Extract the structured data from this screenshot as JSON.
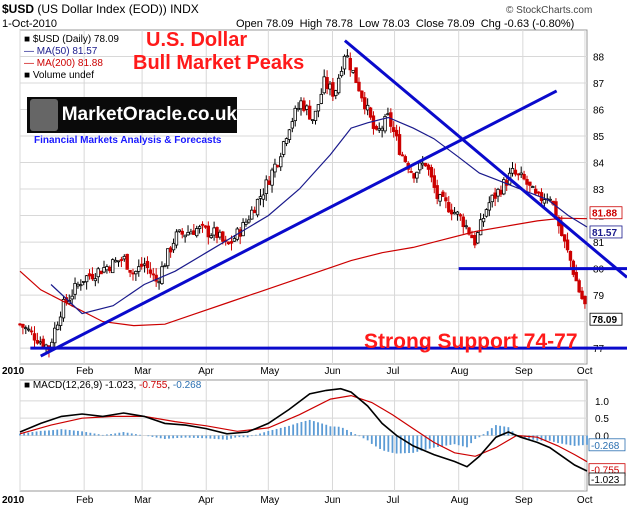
{
  "header": {
    "symbol": "$USD",
    "description": "(US Dollar Index (EOD))",
    "exchange": "INDX",
    "date": "1-Oct-2010",
    "open_label": "Open",
    "open": "78.09",
    "high_label": "High",
    "high": "78.78",
    "low_label": "Low",
    "low": "78.03",
    "close_label": "Close",
    "close": "78.09",
    "chg_label": "Chg",
    "chg": "-0.63 (-0.80%)",
    "copyright": "© StockCharts.com"
  },
  "legend": {
    "price": "■ $USD (Daily) 78.09",
    "ma50": "— MA(50) 81.57",
    "ma200": "— MA(200) 81.88",
    "volume": "■ Volume undef"
  },
  "annotations": {
    "title_line1": "U.S. Dollar",
    "title_line2": "Bull Market Peaks",
    "support": "Strong Support 74-77"
  },
  "logo": {
    "name": "MarketOracle.co.uk",
    "tagline": "Financial Markets Analysis & Forecasts"
  },
  "macd_legend": {
    "label": "MACD(12,26,9)",
    "macd": "-1.023",
    "signal": "-0.755",
    "hist": "-0.268"
  },
  "colors": {
    "up": "#000000",
    "down": "#cc0000",
    "ma50": "#1a1a8c",
    "ma200": "#cc0000",
    "trend": "#0a0acc",
    "annotation": "#ff1a1a",
    "hist": "#5b9bd5"
  },
  "chart_data": [
    {
      "type": "candlestick",
      "title": "$USD (US Dollar Index (EOD)) INDX",
      "ylim": [
        76.4,
        89.0
      ],
      "y_ticks": [
        77,
        78,
        79,
        80,
        81,
        82,
        83,
        84,
        85,
        86,
        87,
        88
      ],
      "x_ticks": [
        "2010",
        "Feb",
        "Mar",
        "Apr",
        "May",
        "Jun",
        "Jul",
        "Aug",
        "Sep",
        "Oct"
      ],
      "x_tick_days": [
        0,
        31,
        59,
        90,
        120,
        151,
        181,
        212,
        243,
        273
      ],
      "x_domain": [
        0,
        274
      ],
      "price_keypoints": [
        [
          0,
          77.9
        ],
        [
          8,
          77.4
        ],
        [
          14,
          77.0
        ],
        [
          20,
          78.5
        ],
        [
          30,
          79.6
        ],
        [
          40,
          80.0
        ],
        [
          50,
          80.4
        ],
        [
          55,
          79.8
        ],
        [
          60,
          80.2
        ],
        [
          66,
          79.5
        ],
        [
          75,
          81.2
        ],
        [
          85,
          81.5
        ],
        [
          95,
          81.3
        ],
        [
          100,
          80.8
        ],
        [
          108,
          81.6
        ],
        [
          118,
          83.0
        ],
        [
          125,
          84.2
        ],
        [
          130,
          85.4
        ],
        [
          136,
          86.3
        ],
        [
          142,
          85.6
        ],
        [
          147,
          87.0
        ],
        [
          152,
          86.6
        ],
        [
          157,
          88.2
        ],
        [
          160,
          87.6
        ],
        [
          166,
          86.4
        ],
        [
          172,
          85.0
        ],
        [
          178,
          85.7
        ],
        [
          184,
          84.4
        ],
        [
          190,
          83.6
        ],
        [
          196,
          84.0
        ],
        [
          202,
          82.6
        ],
        [
          208,
          82.3
        ],
        [
          214,
          81.8
        ],
        [
          220,
          81.0
        ],
        [
          226,
          82.4
        ],
        [
          232,
          83.0
        ],
        [
          238,
          83.6
        ],
        [
          244,
          83.3
        ],
        [
          250,
          82.6
        ],
        [
          256,
          82.8
        ],
        [
          262,
          81.2
        ],
        [
          266,
          80.3
        ],
        [
          270,
          79.2
        ],
        [
          273,
          78.6
        ],
        [
          274,
          78.09
        ]
      ],
      "ma50_points": [
        [
          15,
          79.4
        ],
        [
          30,
          78.3
        ],
        [
          45,
          78.6
        ],
        [
          60,
          79.4
        ],
        [
          75,
          79.9
        ],
        [
          90,
          80.6
        ],
        [
          105,
          81.3
        ],
        [
          120,
          82.0
        ],
        [
          135,
          83.0
        ],
        [
          150,
          84.3
        ],
        [
          160,
          85.3
        ],
        [
          168,
          85.5
        ],
        [
          178,
          85.7
        ],
        [
          190,
          85.3
        ],
        [
          200,
          84.9
        ],
        [
          212,
          84.2
        ],
        [
          222,
          83.6
        ],
        [
          232,
          83.3
        ],
        [
          245,
          82.9
        ],
        [
          255,
          82.6
        ],
        [
          265,
          82.0
        ],
        [
          274,
          81.57
        ]
      ],
      "ma200_points": [
        [
          0,
          79.9
        ],
        [
          10,
          79.2
        ],
        [
          25,
          78.6
        ],
        [
          40,
          78.0
        ],
        [
          55,
          77.85
        ],
        [
          70,
          77.9
        ],
        [
          85,
          78.3
        ],
        [
          100,
          78.7
        ],
        [
          115,
          79.1
        ],
        [
          130,
          79.5
        ],
        [
          145,
          79.9
        ],
        [
          160,
          80.3
        ],
        [
          175,
          80.6
        ],
        [
          190,
          80.8
        ],
        [
          205,
          81.1
        ],
        [
          220,
          81.4
        ],
        [
          235,
          81.6
        ],
        [
          250,
          81.8
        ],
        [
          262,
          81.9
        ],
        [
          274,
          81.88
        ]
      ],
      "trend_lines": [
        {
          "name": "peak-downtrend",
          "from": [
            157,
            88.6
          ],
          "to": [
            274,
            80.8
          ]
        },
        {
          "name": "bull-uptrend",
          "from": [
            10,
            76.7
          ],
          "to": [
            240,
            86.7
          ]
        },
        {
          "name": "breakout-level",
          "from": [
            212,
            80.0
          ],
          "to": [
            274,
            80.0
          ]
        },
        {
          "name": "support-line",
          "from": [
            5,
            77.0
          ],
          "to": [
            274,
            77.0
          ]
        }
      ],
      "right_labels": [
        {
          "text": "81.88",
          "value": 81.88,
          "color": "#cc0000"
        },
        {
          "text": "81.57",
          "value": 81.57,
          "color": "#1a1a8c"
        },
        {
          "text": "78.09",
          "value": 78.09,
          "color": "#000000"
        }
      ]
    },
    {
      "type": "line",
      "title": "MACD(12,26,9)",
      "ylim": [
        -1.6,
        1.6
      ],
      "y_ticks": [
        1.0,
        0.5,
        0.0
      ],
      "x_ticks": [
        "2010",
        "Feb",
        "Mar",
        "Apr",
        "May",
        "Jun",
        "Jul",
        "Aug",
        "Sep",
        "Oct"
      ],
      "series": [
        {
          "name": "MACD",
          "points": [
            [
              0,
              0.1
            ],
            [
              10,
              0.35
            ],
            [
              20,
              0.55
            ],
            [
              30,
              0.62
            ],
            [
              40,
              0.55
            ],
            [
              50,
              0.65
            ],
            [
              60,
              0.55
            ],
            [
              70,
              0.35
            ],
            [
              80,
              0.3
            ],
            [
              90,
              0.2
            ],
            [
              100,
              0.05
            ],
            [
              110,
              0.1
            ],
            [
              120,
              0.35
            ],
            [
              130,
              0.75
            ],
            [
              140,
              1.2
            ],
            [
              148,
              1.3
            ],
            [
              155,
              1.35
            ],
            [
              160,
              1.25
            ],
            [
              168,
              0.85
            ],
            [
              175,
              0.35
            ],
            [
              182,
              0.0
            ],
            [
              190,
              -0.3
            ],
            [
              200,
              -0.55
            ],
            [
              210,
              -0.75
            ],
            [
              216,
              -0.9
            ],
            [
              222,
              -0.6
            ],
            [
              230,
              -0.05
            ],
            [
              236,
              0.1
            ],
            [
              242,
              -0.05
            ],
            [
              250,
              -0.2
            ],
            [
              256,
              -0.35
            ],
            [
              262,
              -0.6
            ],
            [
              268,
              -0.85
            ],
            [
              274,
              -1.023
            ]
          ]
        },
        {
          "name": "Signal",
          "points": [
            [
              0,
              0.05
            ],
            [
              15,
              0.3
            ],
            [
              30,
              0.5
            ],
            [
              45,
              0.55
            ],
            [
              60,
              0.55
            ],
            [
              75,
              0.4
            ],
            [
              90,
              0.28
            ],
            [
              105,
              0.12
            ],
            [
              120,
              0.22
            ],
            [
              135,
              0.6
            ],
            [
              150,
              1.05
            ],
            [
              160,
              1.15
            ],
            [
              170,
              0.95
            ],
            [
              180,
              0.6
            ],
            [
              190,
              0.2
            ],
            [
              200,
              -0.2
            ],
            [
              210,
              -0.5
            ],
            [
              220,
              -0.6
            ],
            [
              230,
              -0.35
            ],
            [
              240,
              0.0
            ],
            [
              250,
              -0.05
            ],
            [
              260,
              -0.3
            ],
            [
              268,
              -0.55
            ],
            [
              274,
              -0.755
            ]
          ]
        }
      ],
      "values": {
        "macd": -1.023,
        "signal": -0.755,
        "histogram": -0.268
      }
    }
  ]
}
